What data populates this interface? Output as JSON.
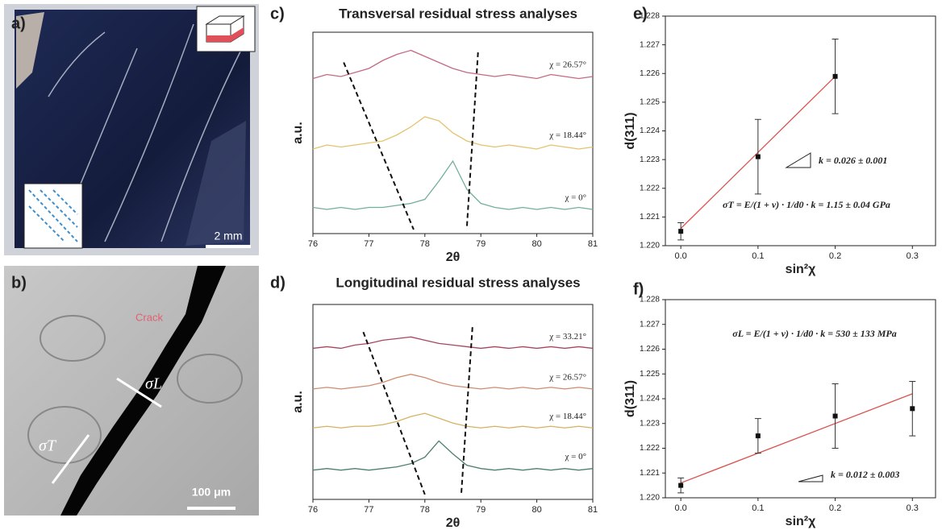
{
  "panels": [
    {
      "label": "a)",
      "scale_bar": "2 mm"
    },
    {
      "label": "b)",
      "annotation": "Crack",
      "scale_bar": "100 μm",
      "stress_labels": [
        "σL",
        "σT"
      ]
    }
  ],
  "chart_data": [
    {
      "type": "spectra",
      "label": "c)",
      "title": "Transversal residual stress analyses",
      "xlabel": "2θ",
      "ylabel": "a.u.",
      "x": [
        76,
        76.25,
        76.5,
        76.75,
        77,
        77.25,
        77.5,
        77.75,
        78,
        78.25,
        78.5,
        78.75,
        79,
        79.25,
        79.5,
        79.75,
        80,
        80.25,
        80.5,
        80.75,
        81
      ],
      "xlim": [
        76,
        81
      ],
      "xticks": [
        76,
        77,
        78,
        79,
        80,
        81
      ],
      "ylim": [
        0,
        10
      ],
      "series": [
        {
          "name": "χ = 26.57°",
          "color": "#c46a80",
          "values": [
            7.7,
            7.9,
            7.8,
            8.0,
            8.2,
            8.6,
            8.9,
            9.1,
            8.8,
            8.5,
            8.2,
            8.0,
            7.9,
            7.8,
            7.9,
            7.8,
            7.7,
            7.9,
            7.8,
            7.7,
            7.8
          ]
        },
        {
          "name": "χ = 18.44°",
          "color": "#e3c36e",
          "values": [
            4.2,
            4.4,
            4.3,
            4.4,
            4.5,
            4.6,
            4.9,
            5.3,
            5.8,
            5.6,
            5.0,
            4.6,
            4.4,
            4.3,
            4.4,
            4.3,
            4.2,
            4.4,
            4.3,
            4.2,
            4.3
          ]
        },
        {
          "name": "χ = 0°",
          "color": "#72b096",
          "values": [
            1.3,
            1.2,
            1.3,
            1.2,
            1.3,
            1.3,
            1.4,
            1.5,
            1.7,
            2.6,
            3.6,
            2.2,
            1.5,
            1.3,
            1.2,
            1.3,
            1.2,
            1.3,
            1.2,
            1.3,
            1.2
          ]
        }
      ],
      "guides": [
        {
          "x": [
            76.55,
            77.8
          ],
          "values": [
            8.5,
            0.2
          ]
        },
        {
          "x": [
            78.95,
            78.75
          ],
          "values": [
            9.0,
            0.3
          ]
        }
      ]
    },
    {
      "type": "spectra",
      "label": "d)",
      "title": "Longitudinal residual stress analyses",
      "xlabel": "2θ",
      "ylabel": "a.u.",
      "x": [
        76,
        76.25,
        76.5,
        76.75,
        77,
        77.25,
        77.5,
        77.75,
        78,
        78.25,
        78.5,
        78.75,
        79,
        79.25,
        79.5,
        79.75,
        80,
        80.25,
        80.5,
        80.75,
        81
      ],
      "xlim": [
        76,
        81
      ],
      "xticks": [
        76,
        77,
        78,
        79,
        80,
        81
      ],
      "ylim": [
        0,
        12
      ],
      "series": [
        {
          "name": "χ = 33.21°",
          "color": "#a8455e",
          "values": [
            9.3,
            9.4,
            9.3,
            9.5,
            9.6,
            9.8,
            9.9,
            10.0,
            9.8,
            9.6,
            9.5,
            9.4,
            9.3,
            9.4,
            9.3,
            9.4,
            9.3,
            9.4,
            9.3,
            9.4,
            9.3
          ]
        },
        {
          "name": "χ = 26.57°",
          "color": "#cf8c6e",
          "values": [
            6.8,
            6.9,
            6.8,
            6.9,
            7.0,
            7.2,
            7.5,
            7.7,
            7.5,
            7.2,
            7.0,
            6.9,
            6.8,
            6.9,
            6.8,
            6.9,
            6.8,
            6.9,
            6.8,
            6.9,
            6.8
          ]
        },
        {
          "name": "χ = 18.44°",
          "color": "#d5b262",
          "values": [
            4.4,
            4.5,
            4.4,
            4.5,
            4.5,
            4.6,
            4.8,
            5.1,
            5.3,
            5.0,
            4.7,
            4.5,
            4.4,
            4.5,
            4.4,
            4.5,
            4.4,
            4.5,
            4.4,
            4.5,
            4.4
          ]
        },
        {
          "name": "χ = 0°",
          "color": "#4d7f6e",
          "values": [
            1.8,
            1.9,
            1.8,
            1.9,
            1.8,
            1.9,
            2.0,
            2.2,
            2.6,
            3.6,
            2.8,
            2.1,
            1.9,
            1.8,
            1.9,
            1.8,
            1.9,
            1.8,
            1.9,
            1.8,
            1.9
          ]
        }
      ],
      "guides": [
        {
          "x": [
            76.9,
            78.0
          ],
          "values": [
            10.3,
            0.3
          ]
        },
        {
          "x": [
            78.85,
            78.65
          ],
          "values": [
            10.6,
            0.3
          ]
        }
      ]
    },
    {
      "type": "scatter",
      "label": "e)",
      "xlabel": "sin²χ",
      "ylabel": "d(311)",
      "xlim": [
        -0.02,
        0.33
      ],
      "xticks": [
        {
          "value": 0,
          "label": "0.0"
        },
        0.1,
        0.2,
        0.3
      ],
      "ylim": [
        1.22,
        1.228
      ],
      "yticks": [
        {
          "value": 1.22,
          "label": "1.220"
        },
        1.221,
        1.222,
        1.223,
        1.224,
        1.225,
        1.226,
        1.227,
        1.228
      ],
      "series": [
        {
          "x": [
            0,
            0.1,
            0.2
          ],
          "values": [
            1.2205,
            1.2231,
            1.2259
          ],
          "errors": [
            0.0003,
            0.0013,
            0.0013
          ],
          "color": "#111111"
        }
      ],
      "fit": {
        "x": [
          0,
          0.2
        ],
        "values": [
          1.2206,
          1.2259
        ],
        "color": "#d9534f"
      },
      "annotations": [
        "k = 0.026 ± 0.001",
        "σT = E/(1 + v) · 1/d0 · k = 1.15 ± 0.04 GPa"
      ]
    },
    {
      "type": "scatter",
      "label": "f)",
      "xlabel": "sin²χ",
      "ylabel": "d(311)",
      "xlim": [
        -0.02,
        0.33
      ],
      "xticks": [
        {
          "value": 0,
          "label": "0.0"
        },
        0.1,
        0.2,
        0.3
      ],
      "ylim": [
        1.22,
        1.228
      ],
      "yticks": [
        {
          "value": 1.22,
          "label": "1.220"
        },
        1.221,
        1.222,
        1.223,
        1.224,
        1.225,
        1.226,
        1.227,
        1.228
      ],
      "series": [
        {
          "x": [
            0,
            0.1,
            0.2,
            0.3
          ],
          "values": [
            1.2205,
            1.2225,
            1.2233,
            1.2236
          ],
          "errors": [
            0.0003,
            0.0007,
            0.0013,
            0.0011
          ],
          "color": "#111111"
        }
      ],
      "fit": {
        "x": [
          0,
          0.3
        ],
        "values": [
          1.2206,
          1.2242
        ],
        "color": "#d9534f"
      },
      "annotations": [
        "σL = E/(1 + v) · 1/d0 · k = 530 ± 133 MPa",
        "k = 0.012 ± 0.003"
      ]
    }
  ]
}
